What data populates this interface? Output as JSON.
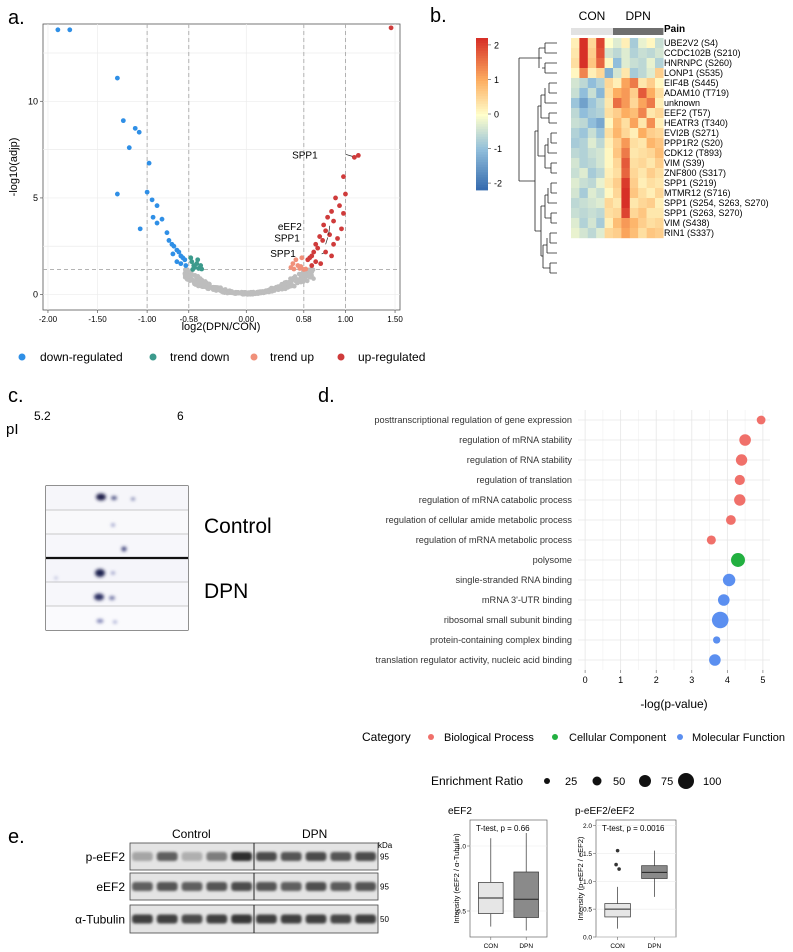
{
  "panels": {
    "a": {
      "label": "a."
    },
    "b": {
      "label": "b."
    },
    "c": {
      "label": "c."
    },
    "d": {
      "label": "d."
    },
    "e": {
      "label": "e."
    }
  },
  "colors": {
    "down": "#2f8fe6",
    "trend_down": "#3c9a8c",
    "trend_up": "#f0907a",
    "up": "#cf3b3b",
    "ns": "#bdbdbd",
    "bio": "#f0706a",
    "cell": "#22b040",
    "mol": "#5b8ff0"
  },
  "chart_data": [
    {
      "id": "volcano",
      "type": "scatter",
      "xlabel": "log2(DPN/CON)",
      "ylabel": "-log10(adjp)",
      "xlim": [
        -2.05,
        1.55
      ],
      "ylim": [
        -0.8,
        14.0
      ],
      "x_ticks": [
        "-2.00",
        "-1.50",
        "-1.00",
        "-0.58",
        "0.00",
        "0.58",
        "1.00",
        "1.50"
      ],
      "x_tick_values": [
        -2.0,
        -1.5,
        -1.0,
        -0.58,
        0.0,
        0.58,
        1.0,
        1.5
      ],
      "y_ticks": [
        "0",
        "5",
        "10"
      ],
      "y_tick_values": [
        0,
        5,
        10
      ],
      "threshold_x": [
        -1.0,
        -0.58,
        0.58,
        1.0
      ],
      "threshold_y": 1.3,
      "legend": [
        "down-regulated",
        "trend down",
        "trend up",
        "up-regulated"
      ],
      "annotations": [
        {
          "text": "SPP1",
          "x": 0.78,
          "y": 7.1
        },
        {
          "text": "eEF2",
          "x": 0.62,
          "y": 3.4
        },
        {
          "text": "SPP1",
          "x": 0.6,
          "y": 2.8
        },
        {
          "text": "SPP1",
          "x": 0.56,
          "y": 2.0
        }
      ],
      "series": [
        {
          "name": "down-regulated",
          "points": [
            [
              -1.9,
              13.7
            ],
            [
              -1.78,
              13.7
            ],
            [
              -1.3,
              11.2
            ],
            [
              -1.24,
              9.0
            ],
            [
              -1.12,
              8.6
            ],
            [
              -1.18,
              7.6
            ],
            [
              -1.08,
              8.4
            ],
            [
              -1.3,
              5.2
            ],
            [
              -0.98,
              6.8
            ],
            [
              -1.0,
              5.3
            ],
            [
              -1.07,
              3.4
            ],
            [
              -0.95,
              4.9
            ],
            [
              -0.9,
              4.6
            ],
            [
              -0.94,
              4.0
            ],
            [
              -0.85,
              3.9
            ],
            [
              -0.9,
              3.7
            ],
            [
              -0.8,
              3.2
            ],
            [
              -0.78,
              2.8
            ],
            [
              -0.75,
              2.6
            ],
            [
              -0.73,
              2.5
            ],
            [
              -0.7,
              2.3
            ],
            [
              -0.68,
              2.2
            ],
            [
              -0.66,
              2.0
            ],
            [
              -0.64,
              1.9
            ],
            [
              -0.62,
              1.8
            ],
            [
              -0.74,
              2.1
            ],
            [
              -0.7,
              1.7
            ],
            [
              -0.66,
              1.6
            ],
            [
              -0.61,
              1.5
            ]
          ]
        },
        {
          "name": "trend down",
          "points": [
            [
              -0.56,
              1.9
            ],
            [
              -0.55,
              1.7
            ],
            [
              -0.53,
              1.5
            ],
            [
              -0.52,
              1.4
            ],
            [
              -0.5,
              1.6
            ],
            [
              -0.48,
              1.35
            ],
            [
              -0.46,
              1.5
            ],
            [
              -0.45,
              1.32
            ],
            [
              -0.54,
              1.3
            ],
            [
              -0.49,
              1.8
            ]
          ]
        },
        {
          "name": "trend up",
          "points": [
            [
              0.45,
              1.4
            ],
            [
              0.47,
              1.6
            ],
            [
              0.5,
              1.8
            ],
            [
              0.52,
              1.5
            ],
            [
              0.54,
              1.35
            ],
            [
              0.48,
              1.32
            ],
            [
              0.56,
              1.9
            ],
            [
              0.55,
              1.45
            ],
            [
              0.58,
              1.3
            ],
            [
              0.6,
              1.32
            ]
          ]
        },
        {
          "name": "up-regulated",
          "points": [
            [
              1.46,
              13.8
            ],
            [
              1.13,
              7.2
            ],
            [
              1.09,
              7.1
            ],
            [
              0.98,
              6.1
            ],
            [
              1.0,
              5.2
            ],
            [
              0.9,
              5.0
            ],
            [
              0.94,
              4.6
            ],
            [
              0.86,
              4.3
            ],
            [
              0.82,
              4.0
            ],
            [
              0.88,
              3.8
            ],
            [
              0.78,
              3.6
            ],
            [
              0.8,
              3.3
            ],
            [
              0.74,
              3.0
            ],
            [
              0.77,
              2.8
            ],
            [
              0.7,
              2.6
            ],
            [
              0.72,
              2.4
            ],
            [
              0.68,
              2.2
            ],
            [
              0.66,
              2.0
            ],
            [
              0.64,
              1.9
            ],
            [
              0.62,
              1.8
            ],
            [
              0.84,
              3.1
            ],
            [
              0.92,
              2.9
            ],
            [
              0.96,
              3.4
            ],
            [
              0.7,
              1.7
            ],
            [
              0.75,
              1.6
            ],
            [
              0.8,
              2.2
            ],
            [
              0.86,
              2.0
            ],
            [
              0.66,
              1.5
            ],
            [
              0.98,
              4.2
            ],
            [
              0.88,
              2.6
            ]
          ]
        },
        {
          "name": "ns",
          "curve": true
        }
      ]
    },
    {
      "id": "heatmap",
      "type": "heatmap",
      "groups": [
        "CON",
        "DPN"
      ],
      "group_sizes": [
        5,
        6
      ],
      "annotation_label": "Pain",
      "colorbar_ticks": [
        "2",
        "1",
        "0",
        "-1",
        "-2"
      ],
      "colorbar_tick_values": [
        2,
        1,
        0,
        -1,
        -2
      ],
      "rows": [
        "UBE2V2 (S4)",
        "CCDC102B (S210)",
        "HNRNPC (S260)",
        "LONP1 (S535)",
        "EIF4B (S445)",
        "ADAM10 (T719)",
        "unknown",
        "EEF2 (T57)",
        "HEATR3 (T340)",
        "EVI2B (S271)",
        "PPP1R2 (S20)",
        "CDK12 (T893)",
        "VIM (S39)",
        "ZNF800 (S317)",
        "SPP1 (S219)",
        "MTMR12 (S716)",
        "SPP1 (S254, S263, S270)",
        "SPP1 (S263, S270)",
        "VIM (S438)",
        "RIN1 (S337)"
      ],
      "values": [
        [
          0.2,
          2.2,
          0.5,
          2.0,
          0.0,
          -0.3,
          0.2,
          -0.8,
          -0.2,
          0.1,
          -0.5
        ],
        [
          0.3,
          2.4,
          0.6,
          1.9,
          -0.4,
          -0.6,
          -0.3,
          -0.7,
          -0.5,
          -0.6,
          -0.4
        ],
        [
          0.4,
          2.3,
          0.7,
          1.7,
          0.1,
          -1.0,
          -0.3,
          -0.5,
          -0.6,
          -0.2,
          -0.7
        ],
        [
          0.1,
          1.4,
          0.2,
          0.5,
          -1.2,
          -0.4,
          0.3,
          -0.8,
          -0.6,
          -0.3,
          0.6
        ],
        [
          -0.4,
          -0.6,
          -1.0,
          -0.7,
          0.5,
          0.2,
          1.1,
          1.5,
          0.3,
          0.6,
          0.1
        ],
        [
          -0.5,
          -1.0,
          -0.5,
          -1.1,
          0.4,
          1.0,
          1.2,
          0.6,
          1.8,
          1.0,
          0.4
        ],
        [
          -0.9,
          -1.4,
          -0.9,
          -0.6,
          0.3,
          1.6,
          1.2,
          0.5,
          1.1,
          1.5,
          0.2
        ],
        [
          -0.6,
          -1.0,
          -0.8,
          -0.7,
          0.4,
          0.6,
          1.0,
          0.8,
          1.4,
          0.3,
          0.5
        ],
        [
          -0.5,
          -0.6,
          -1.0,
          -1.3,
          0.1,
          0.8,
          0.4,
          1.1,
          0.3,
          1.3,
          0.2
        ],
        [
          -0.7,
          -0.9,
          -0.5,
          -0.9,
          0.4,
          0.9,
          0.5,
          0.2,
          1.0,
          0.6,
          0.5
        ],
        [
          -0.8,
          -0.7,
          -0.3,
          -0.6,
          0.2,
          0.6,
          1.2,
          0.4,
          0.3,
          0.9,
          0.7
        ],
        [
          -0.6,
          -0.7,
          -0.5,
          -0.4,
          0.1,
          0.7,
          1.5,
          0.3,
          0.4,
          0.5,
          0.8
        ],
        [
          -0.4,
          -0.7,
          -0.6,
          -0.4,
          0.1,
          0.5,
          1.8,
          0.4,
          0.5,
          0.3,
          0.6
        ],
        [
          -0.5,
          -0.3,
          -0.8,
          -0.6,
          0.2,
          0.4,
          1.7,
          0.5,
          0.3,
          0.6,
          0.4
        ],
        [
          -0.3,
          -0.5,
          -0.6,
          -0.2,
          0.3,
          0.6,
          2.1,
          0.6,
          0.2,
          0.4,
          0.3
        ],
        [
          -0.4,
          -0.8,
          -0.3,
          -0.5,
          0.1,
          0.5,
          2.2,
          0.7,
          0.4,
          0.2,
          0.5
        ],
        [
          -0.6,
          -0.5,
          -0.4,
          -0.3,
          0.5,
          0.3,
          2.2,
          0.3,
          0.5,
          0.6,
          0.2
        ],
        [
          -0.5,
          -0.6,
          -0.5,
          -0.6,
          0.4,
          0.5,
          2.0,
          0.5,
          0.7,
          0.3,
          0.3
        ],
        [
          -0.3,
          -0.7,
          -0.4,
          -0.8,
          0.2,
          0.8,
          1.2,
          0.9,
          0.6,
          0.4,
          0.5
        ],
        [
          -0.2,
          -0.4,
          -0.6,
          -0.3,
          0.5,
          0.6,
          1.1,
          0.8,
          0.4,
          0.7,
          0.6
        ]
      ]
    },
    {
      "id": "bubble",
      "type": "scatter",
      "xlabel": "-log(p-value)",
      "xlim": [
        -0.2,
        5.2
      ],
      "x_ticks": [
        "0",
        "1",
        "2",
        "3",
        "4",
        "5"
      ],
      "x_tick_values": [
        0,
        1,
        2,
        3,
        4,
        5
      ],
      "legend_category_title": "Category",
      "legend_categories": [
        "Biological Process",
        "Cellular Component",
        "Molecular Function"
      ],
      "legend_size_title": "Enrichment Ratio",
      "legend_sizes": [
        "25",
        "50",
        "75",
        "100"
      ],
      "legend_size_values": [
        25,
        50,
        75,
        100
      ],
      "terms": [
        {
          "label": "posttranscriptional regulation of gene expression",
          "x": 4.95,
          "er": 18,
          "cat": "Biological Process"
        },
        {
          "label": "regulation of mRNA stability",
          "x": 4.5,
          "er": 40,
          "cat": "Biological Process"
        },
        {
          "label": "regulation of RNA stability",
          "x": 4.4,
          "er": 38,
          "cat": "Biological Process"
        },
        {
          "label": "regulation of translation",
          "x": 4.35,
          "er": 28,
          "cat": "Biological Process"
        },
        {
          "label": "regulation of mRNA catabolic process",
          "x": 4.35,
          "er": 38,
          "cat": "Biological Process"
        },
        {
          "label": "regulation of cellular amide metabolic process",
          "x": 4.1,
          "er": 25,
          "cat": "Biological Process"
        },
        {
          "label": "regulation of mRNA metabolic process",
          "x": 3.55,
          "er": 20,
          "cat": "Biological Process"
        },
        {
          "label": "polysome",
          "x": 4.3,
          "er": 65,
          "cat": "Cellular Component"
        },
        {
          "label": "single-stranded RNA binding",
          "x": 4.05,
          "er": 48,
          "cat": "Molecular Function"
        },
        {
          "label": "mRNA 3'-UTR binding",
          "x": 3.9,
          "er": 40,
          "cat": "Molecular Function"
        },
        {
          "label": "ribosomal small subunit binding",
          "x": 3.8,
          "er": 100,
          "cat": "Molecular Function"
        },
        {
          "label": "protein-containing complex binding",
          "x": 3.7,
          "er": 10,
          "cat": "Molecular Function"
        },
        {
          "label": "translation regulator activity, nucleic acid binding",
          "x": 3.65,
          "er": 40,
          "cat": "Molecular Function"
        }
      ]
    },
    {
      "id": "box_eef2",
      "type": "box",
      "title": "eEF2",
      "stat": "T-test, p = 0.66",
      "ylabel": "Intensity (eEF2 / α-Tubulin)",
      "categories": [
        "CON",
        "DPN"
      ],
      "ylim": [
        0.3,
        1.2
      ],
      "y_ticks": [
        "0.5",
        "1.0"
      ],
      "y_tick_values": [
        0.5,
        1.0
      ],
      "boxes": [
        {
          "min": 0.38,
          "q1": 0.48,
          "median": 0.6,
          "q3": 0.72,
          "max": 1.06,
          "fill": "#e6e6e6"
        },
        {
          "min": 0.35,
          "q1": 0.45,
          "median": 0.59,
          "q3": 0.8,
          "max": 1.1,
          "fill": "#8a8a8a"
        }
      ]
    },
    {
      "id": "box_peef2",
      "type": "box",
      "title": "p-eEF2/eEF2",
      "stat": "T-test, p = 0.0016",
      "ylabel": "Intensity (p-eEF2 / eEF2)",
      "categories": [
        "CON",
        "DPN"
      ],
      "ylim": [
        0.0,
        2.1
      ],
      "y_ticks": [
        "0.0",
        "0.5",
        "1.0",
        "1.5",
        "2.0"
      ],
      "y_tick_values": [
        0.0,
        0.5,
        1.0,
        1.5,
        2.0
      ],
      "boxes": [
        {
          "min": 0.15,
          "q1": 0.36,
          "median": 0.5,
          "q3": 0.6,
          "max": 0.9,
          "fill": "#e6e6e6",
          "outliers": [
            1.55,
            1.3,
            1.22
          ]
        },
        {
          "min": 0.72,
          "q1": 1.05,
          "median": 1.16,
          "q3": 1.28,
          "max": 1.55,
          "fill": "#8a8a8a"
        }
      ]
    }
  ],
  "gel": {
    "pI_label": "pI",
    "pI_low": "5.2",
    "pI_high": "6",
    "group_labels": [
      "Control",
      "DPN"
    ]
  },
  "western": {
    "group_labels": [
      "Control",
      "DPN"
    ],
    "kda_label": "kDa",
    "bands": [
      {
        "name": "p-eEF2",
        "kda": "95",
        "intensity": [
          0.35,
          0.7,
          0.3,
          0.55,
          0.95,
          0.8,
          0.75,
          0.8,
          0.75,
          0.8
        ]
      },
      {
        "name": "eEF2",
        "kda": "95",
        "intensity": [
          0.7,
          0.75,
          0.7,
          0.75,
          0.8,
          0.75,
          0.7,
          0.78,
          0.72,
          0.75
        ]
      },
      {
        "name": "α-Tubulin",
        "kda": "50",
        "intensity": [
          0.85,
          0.85,
          0.8,
          0.85,
          0.9,
          0.85,
          0.85,
          0.85,
          0.82,
          0.85
        ]
      }
    ]
  }
}
